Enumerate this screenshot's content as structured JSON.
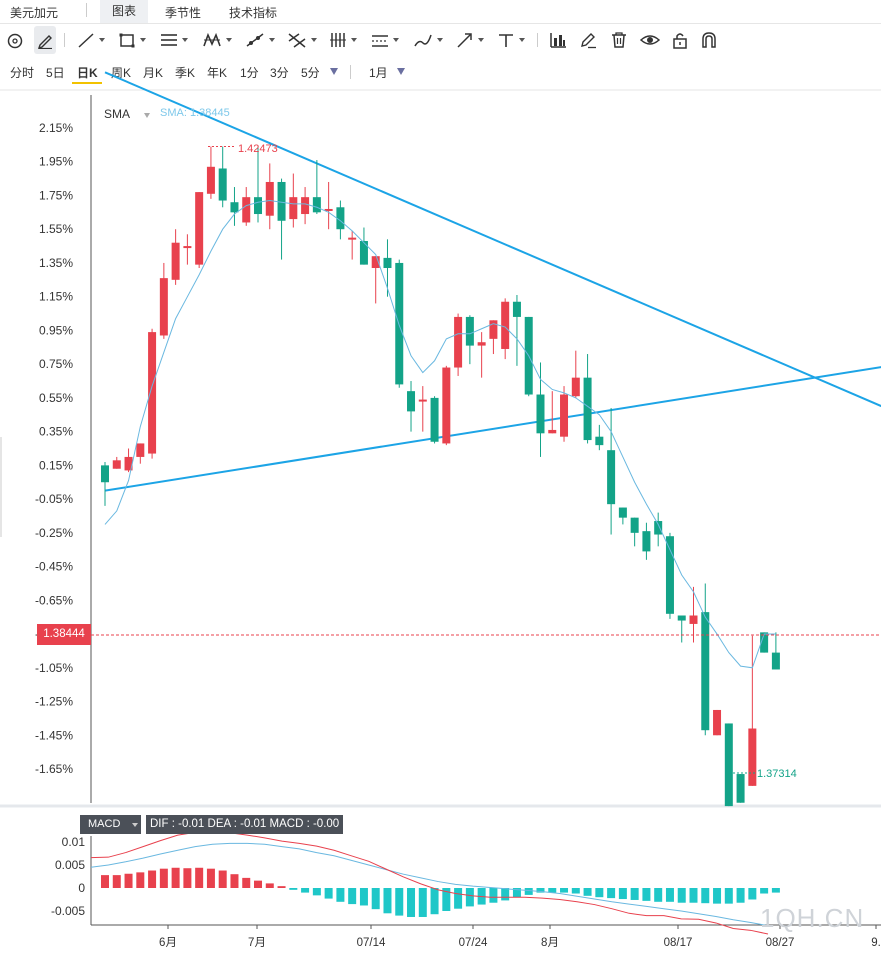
{
  "tabs": [
    {
      "label": "美元加元"
    },
    {
      "label": "图表"
    },
    {
      "label": "季节性"
    },
    {
      "label": "技术指标"
    }
  ],
  "toolbar_icons": [
    "circle-cursor-icon",
    "pen-cursor-icon",
    "line-tool-icon",
    "rectangle-tool-icon",
    "horizontal-lines-tool-icon",
    "pattern-tool-icon",
    "ray-tool-icon",
    "cross-lines-tool-icon",
    "vertical-lines-tool-icon",
    "channel-tool-icon",
    "brush-tool-icon",
    "arrow-tool-icon",
    "text-tool-icon",
    "bar-chart-icon",
    "edit-icon",
    "trash-icon",
    "eye-icon",
    "lock-icon",
    "magnet-icon"
  ],
  "periods": [
    {
      "label": "分时"
    },
    {
      "label": "5日"
    },
    {
      "label": "日K"
    },
    {
      "label": "周K"
    },
    {
      "label": "月K"
    },
    {
      "label": "季K"
    },
    {
      "label": "年K"
    },
    {
      "label": "1分"
    },
    {
      "label": "3分"
    },
    {
      "label": "5分"
    }
  ],
  "active_period": "日K",
  "range_label": "1月",
  "indicator": {
    "name": "SMA",
    "value_label": "SMA: 1.38445"
  },
  "current_price": "1.38444",
  "high_label": "1.42473",
  "low_label": "1.37314",
  "macd": {
    "name": "MACD",
    "values_label": "DIF : -0.01   DEA : -0.01   MACD : -0.00"
  },
  "watermark": "1QH.CN",
  "colors": {
    "up": "#e8414d",
    "down": "#13a388",
    "sma": "#6ab8e0",
    "trend": "#1ca4e6",
    "dif": "#e8414d",
    "dea": "#6ab8e0",
    "macd_neg": "#1fc7c8"
  },
  "chart_data": {
    "type": "candlestick",
    "y_axis": {
      "ticks": [
        "2.15%",
        "1.95%",
        "1.75%",
        "1.55%",
        "1.35%",
        "1.15%",
        "0.95%",
        "0.75%",
        "0.55%",
        "0.35%",
        "0.15%",
        "-0.05%",
        "-0.25%",
        "-0.45%",
        "-0.65%",
        "-0.85%",
        "-1.05%",
        "-1.25%",
        "-1.45%",
        "-1.65%"
      ]
    },
    "x_axis": {
      "ticks": [
        "6月",
        "7月",
        "07/14",
        "07/24",
        "8月",
        "08/17",
        "08/27",
        "9."
      ]
    },
    "candles": [
      [
        0.15,
        0.05,
        0.17,
        -0.09
      ],
      [
        0.13,
        0.18,
        0.2,
        0.13
      ],
      [
        0.12,
        0.2,
        0.25,
        0.11
      ],
      [
        0.2,
        0.28,
        0.28,
        0.16
      ],
      [
        0.22,
        0.94,
        0.96,
        0.19
      ],
      [
        0.92,
        1.26,
        1.35,
        0.9
      ],
      [
        1.25,
        1.47,
        1.55,
        1.22
      ],
      [
        1.45,
        1.45,
        1.52,
        1.34
      ],
      [
        1.34,
        1.77,
        1.77,
        1.32
      ],
      [
        1.76,
        1.92,
        2.04,
        1.73
      ],
      [
        1.91,
        1.72,
        2.04,
        1.68
      ],
      [
        1.71,
        1.65,
        1.8,
        1.57
      ],
      [
        1.59,
        1.74,
        1.8,
        1.57
      ],
      [
        1.74,
        1.64,
        2.04,
        1.59
      ],
      [
        1.63,
        1.83,
        1.94,
        1.55
      ],
      [
        1.83,
        1.6,
        1.85,
        1.37
      ],
      [
        1.61,
        1.74,
        1.88,
        1.56
      ],
      [
        1.64,
        1.74,
        1.8,
        1.58
      ],
      [
        1.74,
        1.65,
        1.96,
        1.64
      ],
      [
        1.67,
        1.67,
        1.83,
        1.55
      ],
      [
        1.68,
        1.55,
        1.72,
        1.49
      ],
      [
        1.5,
        1.5,
        1.54,
        1.37
      ],
      [
        1.48,
        1.34,
        1.56,
        1.35
      ],
      [
        1.32,
        1.39,
        1.38,
        1.11
      ],
      [
        1.38,
        1.32,
        1.49,
        1.15
      ],
      [
        1.35,
        0.63,
        1.37,
        0.61
      ],
      [
        0.59,
        0.47,
        0.65,
        0.35
      ],
      [
        0.54,
        0.54,
        0.62,
        0.35
      ],
      [
        0.55,
        0.29,
        0.56,
        0.28
      ],
      [
        0.28,
        0.73,
        0.74,
        0.27
      ],
      [
        0.73,
        1.03,
        1.05,
        0.68
      ],
      [
        1.03,
        0.86,
        1.04,
        0.75
      ],
      [
        0.86,
        0.88,
        0.94,
        0.67
      ],
      [
        0.9,
        1.01,
        1.01,
        0.81
      ],
      [
        0.84,
        1.12,
        1.14,
        0.78
      ],
      [
        1.12,
        1.03,
        1.16,
        0.74
      ],
      [
        1.03,
        0.57,
        1.03,
        0.56
      ],
      [
        0.57,
        0.34,
        0.76,
        0.2
      ],
      [
        0.34,
        0.36,
        0.59,
        0.35
      ],
      [
        0.32,
        0.57,
        0.62,
        0.29
      ],
      [
        0.56,
        0.67,
        0.83,
        0.55
      ],
      [
        0.67,
        0.3,
        0.81,
        0.28
      ],
      [
        0.32,
        0.27,
        0.39,
        0.24
      ],
      [
        0.24,
        -0.08,
        0.49,
        -0.26
      ],
      [
        -0.1,
        -0.16,
        -0.12,
        -0.2
      ],
      [
        -0.16,
        -0.25,
        -0.21,
        -0.33
      ],
      [
        -0.24,
        -0.36,
        -0.19,
        -0.41
      ],
      [
        -0.18,
        -0.26,
        -0.13,
        -0.33
      ],
      [
        -0.27,
        -0.73,
        -0.25,
        -0.76
      ],
      [
        -0.74,
        -0.77,
        -0.74,
        -0.9
      ],
      [
        -0.79,
        -0.74,
        -0.57,
        -0.9
      ],
      [
        -0.72,
        -1.42,
        -0.55,
        -1.45
      ],
      [
        -1.45,
        -1.3,
        -1.45,
        -1.42
      ],
      [
        -1.38,
        -1.87,
        -1.82,
        -1.61
      ],
      [
        -1.68,
        -1.85,
        -1.8,
        -1.78
      ],
      [
        -1.75,
        -1.41,
        -0.86,
        -1.45
      ],
      [
        -0.84,
        -0.96,
        -0.86,
        -0.96
      ],
      [
        -0.96,
        -1.06,
        -0.84,
        -1.06
      ]
    ],
    "sma": [
      -0.2,
      -0.12,
      0.06,
      0.38,
      0.62,
      0.82,
      1.02,
      1.15,
      1.28,
      1.42,
      1.55,
      1.64,
      1.69,
      1.71,
      1.72,
      1.71,
      1.7,
      1.7,
      1.68,
      1.65,
      1.6,
      1.54,
      1.47,
      1.4,
      1.2,
      0.98,
      0.8,
      0.7,
      0.77,
      0.9,
      0.93,
      0.93,
      0.96,
      0.99,
      0.97,
      0.9,
      0.8,
      0.66,
      0.6,
      0.58,
      0.55,
      0.5,
      0.45,
      0.35,
      0.2,
      0.05,
      -0.08,
      -0.2,
      -0.35,
      -0.5,
      -0.6,
      -0.75,
      -0.85,
      -0.96,
      -1.04,
      -1.05,
      -0.85,
      -0.85
    ],
    "trend_lines": [
      {
        "from": [
          0,
          2.48
        ],
        "to": [
          72,
          0.32
        ]
      },
      {
        "from": [
          0,
          0.0
        ],
        "to": [
          72,
          0.8
        ]
      }
    ],
    "macd_axis": {
      "ticks": [
        "0.01",
        "0.005",
        "0",
        "-0.005"
      ]
    },
    "macd_hist": [
      0.0028,
      0.0028,
      0.0031,
      0.0034,
      0.0038,
      0.0042,
      0.0044,
      0.0043,
      0.0044,
      0.0042,
      0.0038,
      0.003,
      0.0022,
      0.0016,
      0.001,
      0.0004,
      -0.0004,
      -0.001,
      -0.0016,
      -0.0023,
      -0.003,
      -0.0035,
      -0.0038,
      -0.0046,
      -0.0055,
      -0.006,
      -0.0063,
      -0.0063,
      -0.0057,
      -0.005,
      -0.0045,
      -0.004,
      -0.0036,
      -0.0032,
      -0.0027,
      -0.002,
      -0.0015,
      -0.001,
      -0.001,
      -0.001,
      -0.0012,
      -0.0017,
      -0.002,
      -0.0022,
      -0.0024,
      -0.0026,
      -0.0028,
      -0.003,
      -0.003,
      -0.0032,
      -0.0032,
      -0.0033,
      -0.0034,
      -0.0034,
      -0.0032,
      -0.0025,
      -0.0012,
      -0.001
    ],
    "dif": [
      0.0066,
      0.0067,
      0.0077,
      0.009,
      0.0103,
      0.0115,
      0.0121,
      0.0122,
      0.012,
      0.0115,
      0.0109,
      0.0102,
      0.0097,
      0.0091,
      0.0082,
      0.007,
      0.0058,
      0.0041,
      0.0024,
      0.0009,
      -0.0004,
      -0.0012,
      -0.0017,
      -0.002,
      -0.002,
      -0.002,
      -0.0022,
      -0.0025,
      -0.003,
      -0.0036,
      -0.0045,
      -0.0055,
      -0.006,
      -0.006,
      -0.0067,
      -0.0068,
      -0.0076,
      -0.0088,
      -0.0092,
      -0.01
    ],
    "dea": [
      0.0045,
      0.005,
      0.0057,
      0.0065,
      0.0074,
      0.0082,
      0.009,
      0.0095,
      0.0097,
      0.0097,
      0.0095,
      0.009,
      0.0085,
      0.0077,
      0.007,
      0.006,
      0.005,
      0.004,
      0.003,
      0.0022,
      0.0014,
      0.0008,
      0.0004,
      0.0001,
      -0.0002,
      -0.0005,
      -0.0008,
      -0.0012,
      -0.0018,
      -0.0024,
      -0.003,
      -0.0035,
      -0.004,
      -0.0045,
      -0.005,
      -0.0056,
      -0.0062,
      -0.0069,
      -0.0075,
      -0.0082
    ]
  }
}
